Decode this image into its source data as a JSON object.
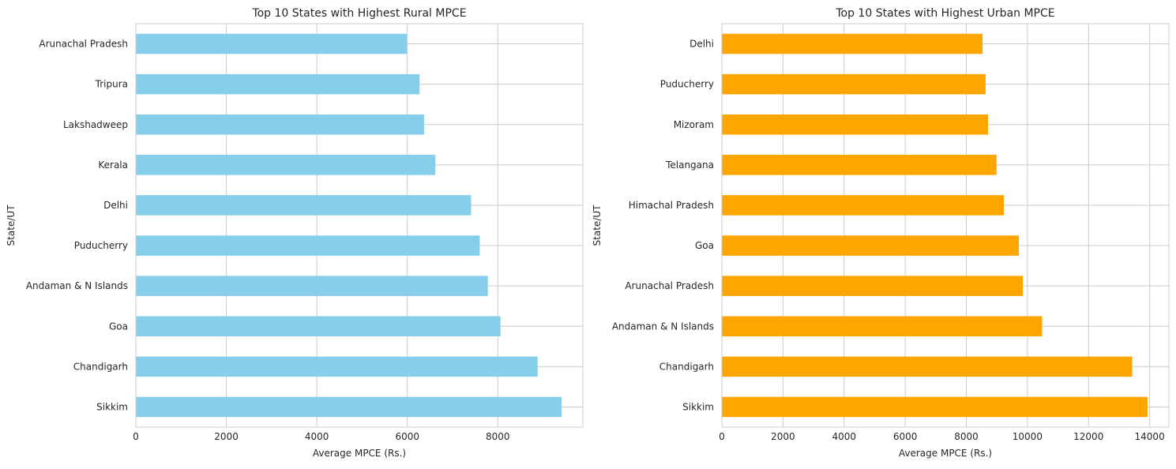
{
  "chart_data": [
    {
      "type": "bar",
      "orientation": "horizontal",
      "title": "Top 10 States with Highest Rural MPCE",
      "xlabel": "Average MPCE (Rs.)",
      "ylabel": "State/UT",
      "categories": [
        "Arunachal Pradesh",
        "Tripura",
        "Lakshadweep",
        "Kerala",
        "Delhi",
        "Puducherry",
        "Andaman & N Islands",
        "Goa",
        "Chandigarh",
        "Sikkim"
      ],
      "values": [
        5990,
        6270,
        6370,
        6620,
        7410,
        7600,
        7780,
        8060,
        8880,
        9410
      ],
      "xlim": [
        0,
        9880
      ],
      "xticks": [
        "0",
        "2000",
        "4000",
        "6000",
        "8000"
      ],
      "grid": true,
      "color": "#87ceeb"
    },
    {
      "type": "bar",
      "orientation": "horizontal",
      "title": "Top 10 States with Highest Urban MPCE",
      "xlabel": "Average MPCE (Rs.)",
      "ylabel": "State/UT",
      "categories": [
        "Delhi",
        "Puducherry",
        "Mizoram",
        "Telangana",
        "Himachal Pradesh",
        "Goa",
        "Arunachal Pradesh",
        "Andaman & N Islands",
        "Chandigarh",
        "Sikkim"
      ],
      "values": [
        8530,
        8630,
        8710,
        8990,
        9230,
        9720,
        9850,
        10480,
        13430,
        13930
      ],
      "xlim": [
        0,
        14630
      ],
      "xticks": [
        "0",
        "2000",
        "4000",
        "6000",
        "8000",
        "10000",
        "12000",
        "14000"
      ],
      "grid": true,
      "color": "#ffa500"
    }
  ]
}
